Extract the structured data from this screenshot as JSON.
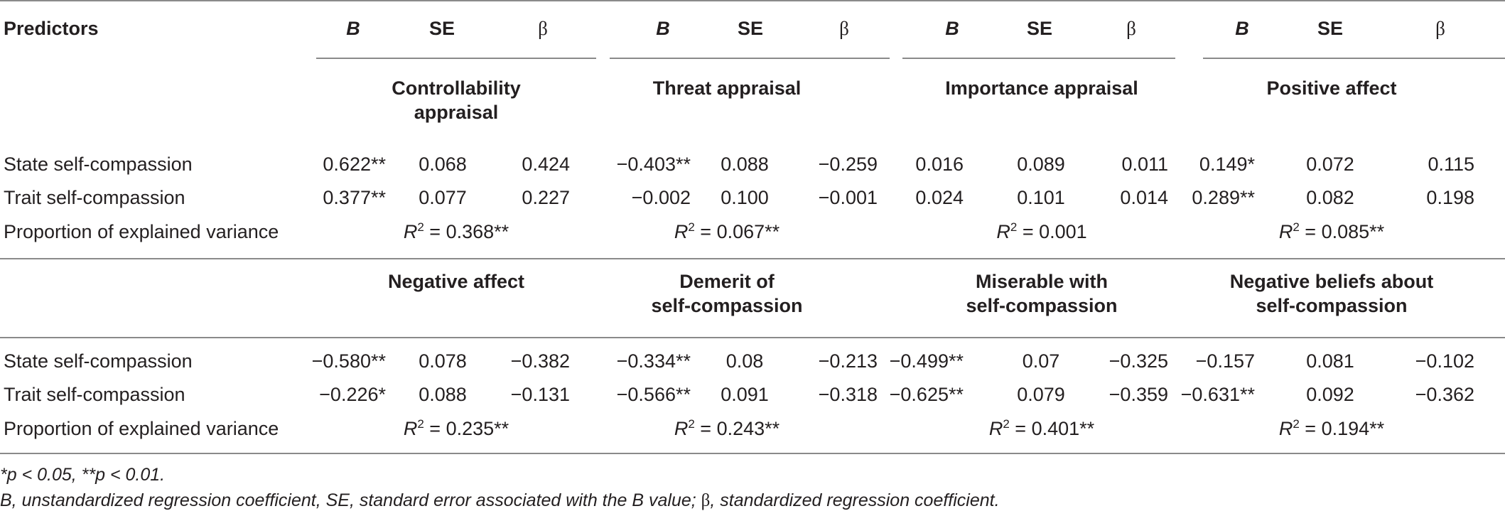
{
  "header": {
    "predictors": "Predictors",
    "b": "B",
    "se": "SE",
    "beta": "β"
  },
  "sections": [
    {
      "outcomes": [
        {
          "line1": "Controllability",
          "line2": "appraisal"
        },
        {
          "line1": "Threat appraisal",
          "line2": ""
        },
        {
          "line1": "Importance appraisal",
          "line2": ""
        },
        {
          "line1": "Positive affect",
          "line2": ""
        }
      ],
      "rows": [
        {
          "label": "State self-compassion",
          "cells": [
            "0.622**",
            "0.068",
            "0.424",
            "−0.403**",
            "0.088",
            "−0.259",
            "0.016",
            "0.089",
            "0.011",
            "0.149*",
            "0.072",
            "0.115"
          ]
        },
        {
          "label": "Trait self-compassion",
          "cells": [
            "0.377**",
            "0.077",
            "0.227",
            "−0.002",
            "0.100",
            "−0.001",
            "0.024",
            "0.101",
            "0.014",
            "0.289**",
            "0.082",
            "0.198"
          ]
        }
      ],
      "variance": {
        "label": "Proportion of explained variance",
        "r": "R",
        "sup": "2",
        "values": [
          " = 0.368**",
          " = 0.067**",
          " = 0.001",
          " = 0.085**"
        ]
      }
    },
    {
      "outcomes": [
        {
          "line1": "Negative affect",
          "line2": ""
        },
        {
          "line1": "Demerit of",
          "line2": "self-compassion"
        },
        {
          "line1": "Miserable with",
          "line2": "self-compassion"
        },
        {
          "line1": "Negative beliefs about",
          "line2": "self-compassion"
        }
      ],
      "rows": [
        {
          "label": "State self-compassion",
          "cells": [
            "−0.580**",
            "0.078",
            "−0.382",
            "−0.334**",
            "0.08",
            "−0.213",
            "−0.499**",
            "0.07",
            "−0.325",
            "−0.157",
            "0.081",
            "−0.102"
          ]
        },
        {
          "label": "Trait self-compassion",
          "cells": [
            "−0.226*",
            "0.088",
            "−0.131",
            "−0.566**",
            "0.091",
            "−0.318",
            "−0.625**",
            "0.079",
            "−0.359",
            "−0.631**",
            "0.092",
            "−0.362"
          ]
        }
      ],
      "variance": {
        "label": "Proportion of explained variance",
        "r": "R",
        "sup": "2",
        "values": [
          " = 0.235**",
          " = 0.243**",
          " = 0.401**",
          " = 0.194**"
        ]
      }
    }
  ],
  "notes": {
    "significance": "*p < 0.05, **p < 0.01.",
    "definitions_a": "B, unstandardized regression coefficient, SE, standard error associated with the B value; ",
    "definitions_beta": "β",
    "definitions_b": ", standardized regression coefficient."
  }
}
